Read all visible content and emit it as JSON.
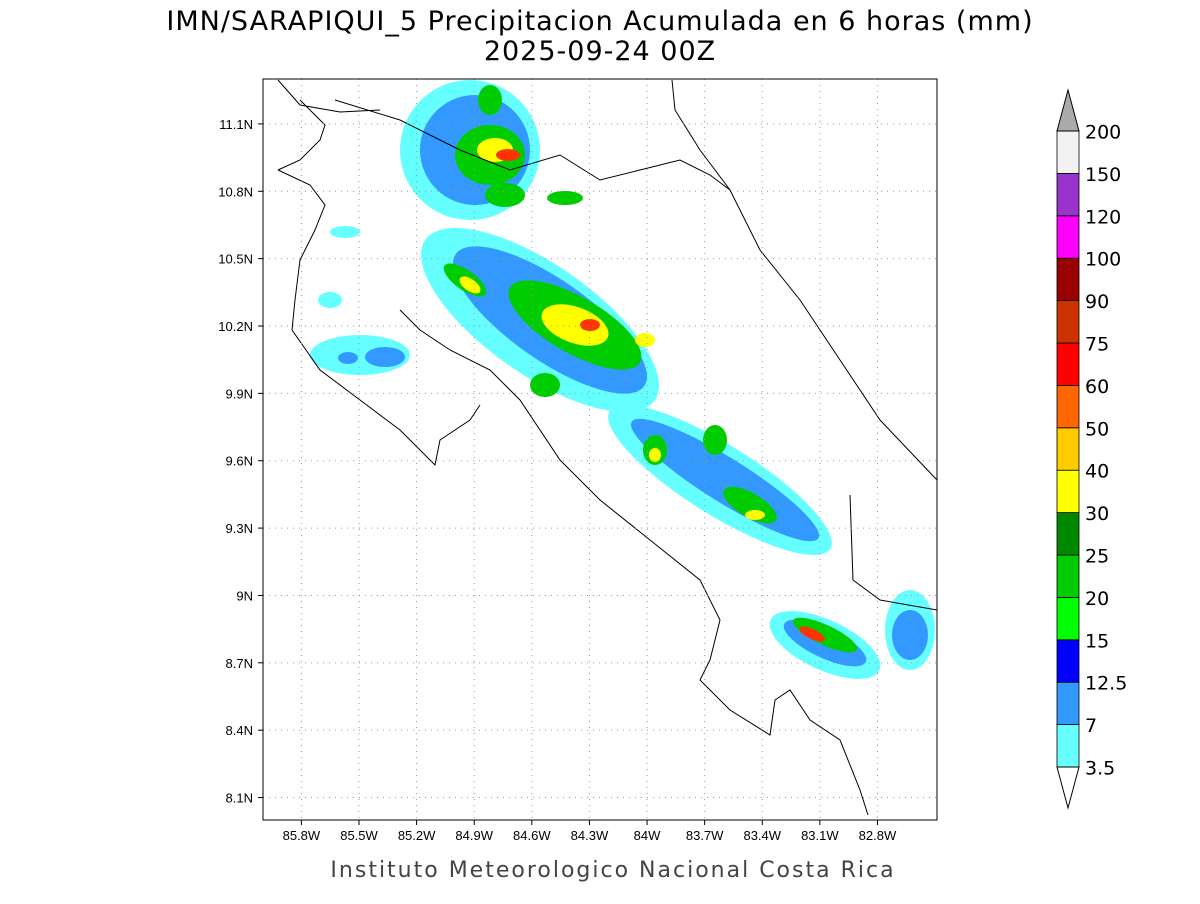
{
  "map": {
    "title": "IMN/SARAPIQUI_5 Precipitacion Acumulada en 6 horas (mm)",
    "subtitle": "2025-09-24 00Z",
    "footer": "Instituto Meteorologico Nacional Costa Rica",
    "lonlim": [
      -86.0,
      -82.49
    ],
    "latlim": [
      8.0,
      11.3
    ],
    "lon_ticks": [
      {
        "value": -85.8,
        "label": "85.8W"
      },
      {
        "value": -85.5,
        "label": "85.5W"
      },
      {
        "value": -85.2,
        "label": "85.2W"
      },
      {
        "value": -84.9,
        "label": "84.9W"
      },
      {
        "value": -84.6,
        "label": "84.6W"
      },
      {
        "value": -84.3,
        "label": "84.3W"
      },
      {
        "value": -84.0,
        "label": "84W"
      },
      {
        "value": -83.7,
        "label": "83.7W"
      },
      {
        "value": -83.4,
        "label": "83.4W"
      },
      {
        "value": -83.1,
        "label": "83.1W"
      },
      {
        "value": -82.8,
        "label": "82.8W"
      }
    ],
    "lat_ticks": [
      {
        "value": 11.1,
        "label": "11.1N"
      },
      {
        "value": 10.8,
        "label": "10.8N"
      },
      {
        "value": 10.5,
        "label": "10.5N"
      },
      {
        "value": 10.2,
        "label": "10.2N"
      },
      {
        "value": 9.9,
        "label": "9.9N"
      },
      {
        "value": 9.6,
        "label": "9.6N"
      },
      {
        "value": 9.3,
        "label": "9.3N"
      },
      {
        "value": 9.0,
        "label": "9N"
      },
      {
        "value": 8.7,
        "label": "8.7N"
      },
      {
        "value": 8.4,
        "label": "8.4N"
      },
      {
        "value": 8.1,
        "label": "8.1N"
      }
    ],
    "grid": true,
    "colorbar": {
      "levels": [
        3.5,
        7,
        12.5,
        15,
        20,
        25,
        30,
        40,
        50,
        60,
        75,
        90,
        100,
        120,
        150,
        200
      ],
      "colors": [
        "#66ffff",
        "#3399ff",
        "#0000ff",
        "#00ff00",
        "#00cc00",
        "#008800",
        "#ffff00",
        "#ffcc00",
        "#ff6600",
        "#ff0000",
        "#cc3300",
        "#990000",
        "#ff00ff",
        "#9933cc",
        "#f2f2f2"
      ],
      "under_color": "#ffffff",
      "over_color": "#aaaaaa"
    }
  }
}
